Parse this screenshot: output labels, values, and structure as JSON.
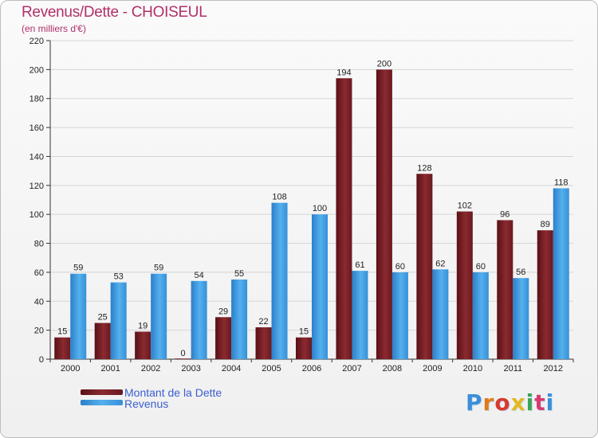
{
  "title": "Revenus/Dette - CHOISEUL",
  "subtitle": "(en milliers d'€)",
  "colors": {
    "dette": "#7a1d24",
    "revenus": "#3d9be0",
    "title": "#b0306a",
    "legend_text": "#3a5fd0"
  },
  "legend": {
    "dette": "Montant de la Dette",
    "revenus": "Revenus"
  },
  "logo": "Proxiti",
  "chart_data": {
    "type": "bar",
    "categories": [
      "2000",
      "2001",
      "2002",
      "2003",
      "2004",
      "2005",
      "2006",
      "2007",
      "2008",
      "2009",
      "2010",
      "2011",
      "2012"
    ],
    "series": [
      {
        "name": "Montant de la Dette",
        "values": [
          15,
          25,
          19,
          0,
          29,
          22,
          15,
          194,
          200,
          128,
          102,
          96,
          89
        ]
      },
      {
        "name": "Revenus",
        "values": [
          59,
          53,
          59,
          54,
          55,
          108,
          100,
          61,
          60,
          62,
          60,
          56,
          118
        ]
      }
    ],
    "ylim": [
      0,
      220
    ],
    "yticks": [
      0,
      20,
      40,
      60,
      80,
      100,
      120,
      140,
      160,
      180,
      200,
      220
    ],
    "grid": true,
    "legend_position": "bottom-left"
  }
}
